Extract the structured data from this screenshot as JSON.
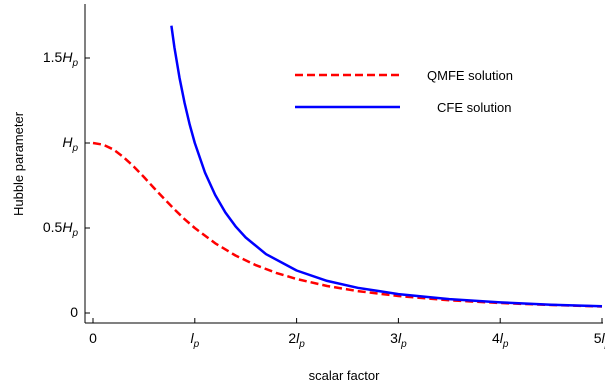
{
  "chart_data": {
    "type": "line",
    "xlabel": "scalar factor",
    "ylabel": "Hubble  parameter",
    "xlim": [
      0,
      5
    ],
    "ylim": [
      -0.03,
      1.75
    ],
    "x_ticks": [
      {
        "value": 0,
        "coef": "0",
        "sym": "",
        "sub": ""
      },
      {
        "value": 1,
        "coef": "",
        "sym": "l",
        "sub": "p"
      },
      {
        "value": 2,
        "coef": "2",
        "sym": "l",
        "sub": "p"
      },
      {
        "value": 3,
        "coef": "3",
        "sym": "l",
        "sub": "p"
      },
      {
        "value": 4,
        "coef": "4",
        "sym": "l",
        "sub": "p"
      },
      {
        "value": 5,
        "coef": "5",
        "sym": "l",
        "sub": "p"
      }
    ],
    "y_ticks": [
      {
        "value": 0,
        "coef": "0",
        "sym": "",
        "sub": ""
      },
      {
        "value": 0.5,
        "coef": "0.5",
        "sym": "H",
        "sub": "p"
      },
      {
        "value": 1,
        "coef": "",
        "sym": "H",
        "sub": "p"
      },
      {
        "value": 1.5,
        "coef": "1.5",
        "sym": "H",
        "sub": "p"
      }
    ],
    "series": [
      {
        "name": "QMFE solution",
        "color": "#ff0000",
        "style": "dashed",
        "x": [
          0,
          0.1,
          0.2,
          0.3,
          0.4,
          0.5,
          0.6,
          0.7,
          0.8,
          0.9,
          1.0,
          1.2,
          1.4,
          1.6,
          1.8,
          2.0,
          2.3,
          2.6,
          3.0,
          3.5,
          4.0,
          4.5,
          5.0
        ],
        "y": [
          1.0,
          0.99,
          0.962,
          0.917,
          0.862,
          0.8,
          0.735,
          0.671,
          0.61,
          0.552,
          0.5,
          0.41,
          0.338,
          0.281,
          0.236,
          0.2,
          0.159,
          0.129,
          0.1,
          0.075,
          0.059,
          0.047,
          0.038
        ]
      },
      {
        "name": "CFE solution",
        "color": "#0000ff",
        "style": "solid",
        "x": [
          0.77,
          0.8,
          0.85,
          0.9,
          0.95,
          1.0,
          1.1,
          1.2,
          1.3,
          1.4,
          1.5,
          1.7,
          2.0,
          2.3,
          2.6,
          3.0,
          3.5,
          4.0,
          4.5,
          5.0
        ],
        "y": [
          1.69,
          1.563,
          1.384,
          1.235,
          1.108,
          1.0,
          0.826,
          0.694,
          0.592,
          0.51,
          0.444,
          0.346,
          0.25,
          0.189,
          0.148,
          0.111,
          0.082,
          0.0625,
          0.049,
          0.04
        ]
      }
    ],
    "legend": {
      "placement": "top-right",
      "entries": [
        "QMFE solution",
        "CFE solution"
      ]
    },
    "grid": false
  }
}
